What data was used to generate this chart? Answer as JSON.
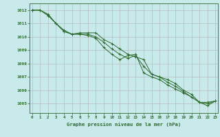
{
  "title": "Graphe pression niveau de la mer (hPa)",
  "background_color": "#c8eaea",
  "grid_color": "#b0b0b0",
  "line_color": "#2d6a2d",
  "x_labels": [
    "0",
    "1",
    "2",
    "3",
    "4",
    "5",
    "6",
    "7",
    "8",
    "9",
    "10",
    "11",
    "12",
    "13",
    "14",
    "15",
    "16",
    "17",
    "18",
    "19",
    "20",
    "21",
    "22",
    "23"
  ],
  "ylim": [
    1004.3,
    1012.5
  ],
  "xlim": [
    -0.3,
    23.3
  ],
  "yticks": [
    1005,
    1006,
    1007,
    1008,
    1009,
    1010,
    1011,
    1012
  ],
  "series": [
    [
      1012.0,
      1012.0,
      1011.7,
      1011.0,
      1010.5,
      1010.2,
      1010.3,
      1010.3,
      1010.3,
      1009.8,
      1009.5,
      1009.1,
      1008.7,
      1008.5,
      1008.3,
      1007.2,
      1007.0,
      1006.8,
      1006.5,
      1006.0,
      1005.7,
      1005.1,
      1005.0,
      1005.2
    ],
    [
      1012.0,
      1012.0,
      1011.6,
      1011.0,
      1010.4,
      1010.2,
      1010.2,
      1010.1,
      1009.9,
      1009.2,
      1008.7,
      1008.3,
      1008.6,
      1008.7,
      1007.3,
      1007.0,
      1006.8,
      1006.4,
      1006.1,
      1005.8,
      1005.5,
      1005.1,
      1004.85,
      1005.2
    ],
    [
      1012.0,
      1012.0,
      1011.6,
      1011.0,
      1010.4,
      1010.2,
      1010.2,
      1010.2,
      1010.0,
      1009.6,
      1009.1,
      1008.7,
      1008.4,
      1008.6,
      1007.8,
      1007.2,
      1007.0,
      1006.6,
      1006.3,
      1005.9,
      1005.5,
      1005.1,
      1005.1,
      1005.2
    ]
  ]
}
